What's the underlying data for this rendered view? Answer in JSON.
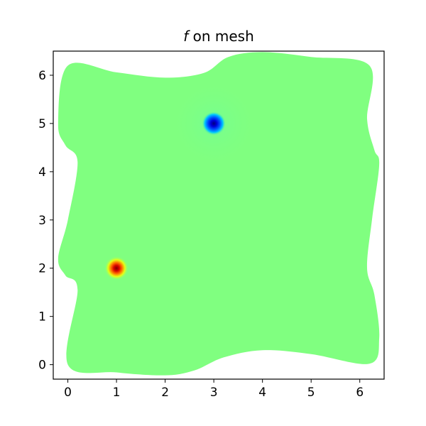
{
  "chart_data": {
    "type": "heatmap",
    "title_var": "f",
    "title_rest": " on mesh",
    "xlim": [
      -0.3,
      6.5
    ],
    "ylim": [
      -0.3,
      6.5
    ],
    "x_ticks": [
      0,
      1,
      2,
      3,
      4,
      5,
      6
    ],
    "y_ticks": [
      0,
      1,
      2,
      3,
      4,
      5,
      6
    ],
    "colormap": "jet",
    "background_value_color": "#80ff80",
    "mesh_boundary": {
      "bottom": [
        [
          0.0,
          0.0
        ],
        [
          1.0,
          -0.16
        ],
        [
          2.0,
          -0.22
        ],
        [
          2.6,
          -0.12
        ],
        [
          3.2,
          0.15
        ],
        [
          4.0,
          0.3
        ],
        [
          5.0,
          0.22
        ],
        [
          6.2,
          0.02
        ]
      ],
      "right": [
        [
          6.2,
          0.02
        ],
        [
          6.4,
          0.55
        ],
        [
          6.3,
          1.45
        ],
        [
          6.15,
          2.0
        ],
        [
          6.25,
          3.0
        ],
        [
          6.4,
          4.15
        ],
        [
          6.3,
          4.45
        ],
        [
          6.15,
          5.1
        ],
        [
          6.2,
          6.2
        ]
      ],
      "top": [
        [
          6.2,
          6.2
        ],
        [
          5.0,
          6.38
        ],
        [
          4.0,
          6.48
        ],
        [
          3.3,
          6.38
        ],
        [
          2.8,
          6.05
        ],
        [
          2.0,
          5.95
        ],
        [
          1.0,
          6.06
        ],
        [
          0.0,
          6.2
        ]
      ],
      "left": [
        [
          0.0,
          6.2
        ],
        [
          -0.2,
          5.0
        ],
        [
          -0.05,
          4.55
        ],
        [
          0.2,
          4.2
        ],
        [
          0.0,
          3.0
        ],
        [
          -0.2,
          2.2
        ],
        [
          -0.05,
          1.85
        ],
        [
          0.2,
          1.55
        ],
        [
          0.0,
          0.0
        ]
      ]
    },
    "features": [
      {
        "kind": "peak",
        "x": 1.0,
        "y": 2.0,
        "value_sign": "positive"
      },
      {
        "kind": "trough",
        "x": 3.0,
        "y": 5.0,
        "value_sign": "negative"
      }
    ]
  }
}
